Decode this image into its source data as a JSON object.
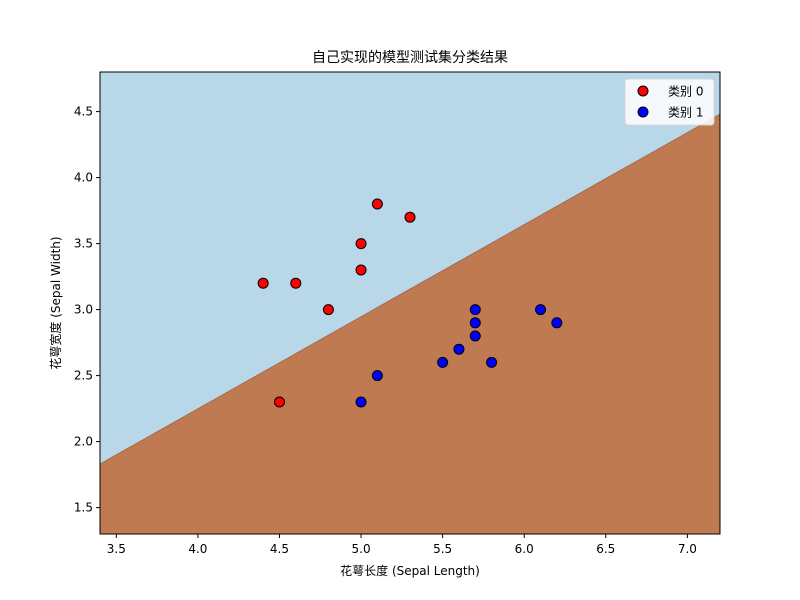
{
  "chart_data": {
    "type": "scatter",
    "title": "自己实现的模型测试集分类结果",
    "xlabel": "花萼长度 (Sepal Length)",
    "ylabel": "花萼宽度 (Sepal Width)",
    "xlim": [
      3.4,
      7.2
    ],
    "ylim": [
      1.3,
      4.8
    ],
    "xticks": [
      3.5,
      4.0,
      4.5,
      5.0,
      5.5,
      6.0,
      6.5,
      7.0
    ],
    "yticks": [
      1.5,
      2.0,
      2.5,
      3.0,
      3.5,
      4.0,
      4.5
    ],
    "xtick_labels": [
      "3.5",
      "4.0",
      "4.5",
      "5.0",
      "5.5",
      "6.0",
      "6.5",
      "7.0"
    ],
    "ytick_labels": [
      "1.5",
      "2.0",
      "2.5",
      "3.0",
      "3.5",
      "4.0",
      "4.5"
    ],
    "grid": false,
    "legend_position": "top-right",
    "decision_boundary": {
      "points": [
        [
          3.4,
          1.83
        ],
        [
          7.2,
          4.48
        ]
      ],
      "region_above_color": "#b8d7e8",
      "region_below_color": "#bf7a51"
    },
    "series": [
      {
        "name": "类别 0",
        "color": "#ff0000",
        "points": [
          [
            4.4,
            3.2
          ],
          [
            4.5,
            2.3
          ],
          [
            4.6,
            3.2
          ],
          [
            4.8,
            3.0
          ],
          [
            5.0,
            3.5
          ],
          [
            5.0,
            3.3
          ],
          [
            5.1,
            3.8
          ],
          [
            5.3,
            3.7
          ]
        ]
      },
      {
        "name": "类别 1",
        "color": "#0000ff",
        "points": [
          [
            5.0,
            2.3
          ],
          [
            5.1,
            2.5
          ],
          [
            5.5,
            2.6
          ],
          [
            5.6,
            2.7
          ],
          [
            5.7,
            3.0
          ],
          [
            5.7,
            2.9
          ],
          [
            5.7,
            2.8
          ],
          [
            5.8,
            2.6
          ],
          [
            6.1,
            3.0
          ],
          [
            6.2,
            2.9
          ]
        ]
      }
    ]
  }
}
